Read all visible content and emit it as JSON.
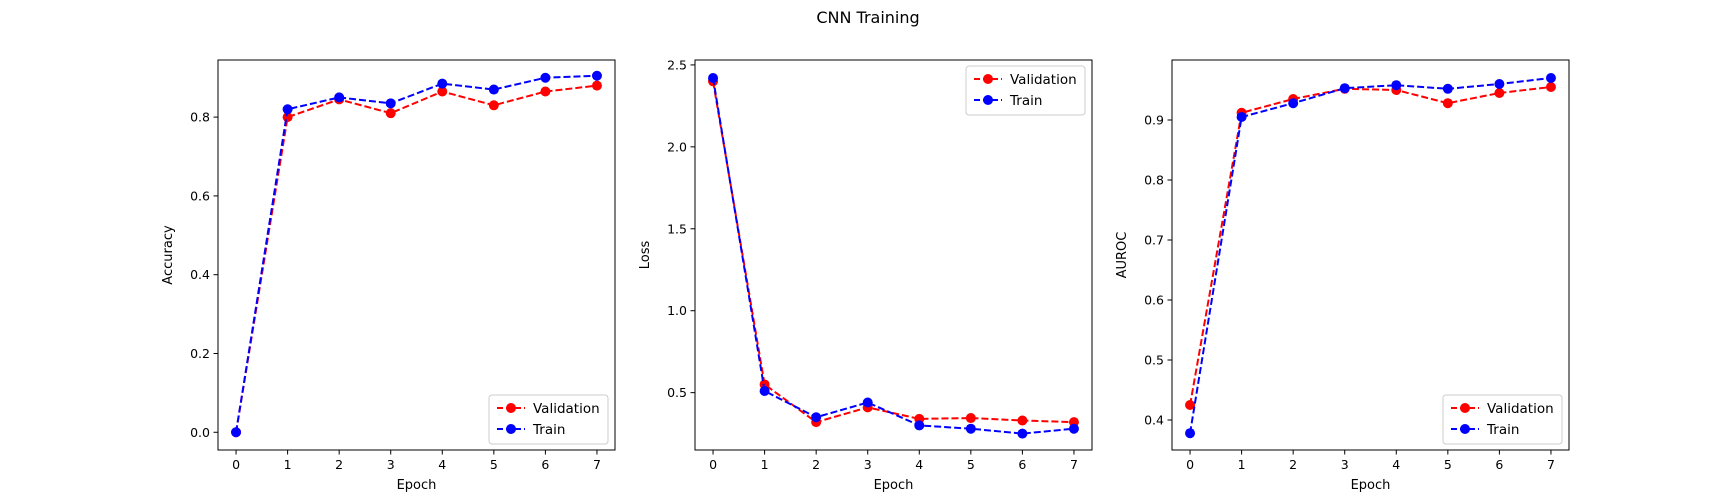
{
  "figure": {
    "title": "CNN Training"
  },
  "chart_data": [
    {
      "type": "line",
      "xlabel": "Epoch",
      "ylabel": "Accuracy",
      "x": [
        0,
        1,
        2,
        3,
        4,
        5,
        6,
        7
      ],
      "xlim": [
        -0.35,
        7.35
      ],
      "ylim": [
        -0.045,
        0.945
      ],
      "xticks": [
        0,
        1,
        2,
        3,
        4,
        5,
        6,
        7
      ],
      "yticks": [
        0.0,
        0.2,
        0.4,
        0.6,
        0.8
      ],
      "ytick_labels": [
        "0.0",
        "0.2",
        "0.4",
        "0.6",
        "0.8"
      ],
      "grid": false,
      "legend_position": "lower-right",
      "series": [
        {
          "name": "Validation",
          "color": "#ff0000",
          "style": "dashed",
          "marker": "circle",
          "values": [
            0.0,
            0.8,
            0.845,
            0.81,
            0.865,
            0.83,
            0.865,
            0.88
          ]
        },
        {
          "name": "Train",
          "color": "#0000ff",
          "style": "dashed",
          "marker": "circle",
          "values": [
            0.0,
            0.82,
            0.85,
            0.835,
            0.885,
            0.87,
            0.9,
            0.905
          ]
        }
      ]
    },
    {
      "type": "line",
      "xlabel": "Epoch",
      "ylabel": "Loss",
      "x": [
        0,
        1,
        2,
        3,
        4,
        5,
        6,
        7
      ],
      "xlim": [
        -0.35,
        7.35
      ],
      "ylim": [
        0.15,
        2.53
      ],
      "xticks": [
        0,
        1,
        2,
        3,
        4,
        5,
        6,
        7
      ],
      "yticks": [
        0.5,
        1.0,
        1.5,
        2.0,
        2.5
      ],
      "ytick_labels": [
        "0.5",
        "1.0",
        "1.5",
        "2.0",
        "2.5"
      ],
      "grid": false,
      "legend_position": "upper-right",
      "series": [
        {
          "name": "Validation",
          "color": "#ff0000",
          "style": "dashed",
          "marker": "circle",
          "values": [
            2.4,
            0.55,
            0.32,
            0.41,
            0.34,
            0.345,
            0.33,
            0.32
          ]
        },
        {
          "name": "Train",
          "color": "#0000ff",
          "style": "dashed",
          "marker": "circle",
          "values": [
            2.42,
            0.51,
            0.35,
            0.44,
            0.3,
            0.28,
            0.25,
            0.28
          ]
        }
      ]
    },
    {
      "type": "line",
      "xlabel": "Epoch",
      "ylabel": "AUROC",
      "x": [
        0,
        1,
        2,
        3,
        4,
        5,
        6,
        7
      ],
      "xlim": [
        -0.35,
        7.35
      ],
      "ylim": [
        0.35,
        1.0
      ],
      "xticks": [
        0,
        1,
        2,
        3,
        4,
        5,
        6,
        7
      ],
      "yticks": [
        0.4,
        0.5,
        0.6,
        0.7,
        0.8,
        0.9
      ],
      "ytick_labels": [
        "0.4",
        "0.5",
        "0.6",
        "0.7",
        "0.8",
        "0.9"
      ],
      "grid": false,
      "legend_position": "lower-right",
      "series": [
        {
          "name": "Validation",
          "color": "#ff0000",
          "style": "dashed",
          "marker": "circle",
          "values": [
            0.425,
            0.912,
            0.935,
            0.952,
            0.95,
            0.928,
            0.945,
            0.955
          ]
        },
        {
          "name": "Train",
          "color": "#0000ff",
          "style": "dashed",
          "marker": "circle",
          "values": [
            0.378,
            0.905,
            0.928,
            0.953,
            0.958,
            0.952,
            0.96,
            0.97
          ]
        }
      ]
    }
  ]
}
